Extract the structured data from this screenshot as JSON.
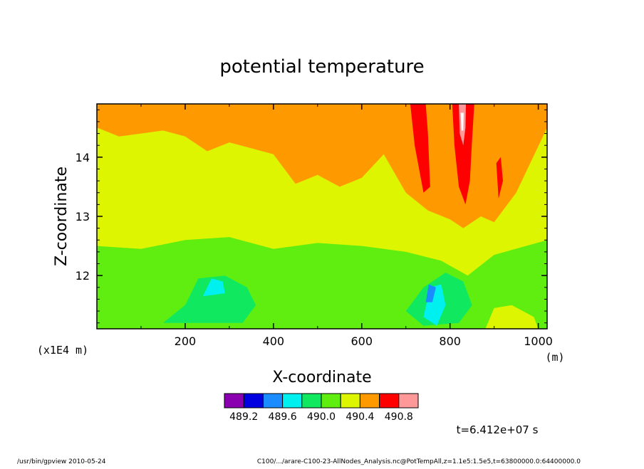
{
  "chart_data": {
    "type": "heatmap",
    "title": "potential temperature",
    "xlabel": "X-coordinate",
    "ylabel": "Z-coordinate",
    "x_unit": "(m)",
    "y_unit": "(x1E4 m)",
    "xlim": [
      0,
      1020
    ],
    "ylim": [
      11.1,
      14.9
    ],
    "x_ticks": [
      200,
      400,
      600,
      800,
      1000
    ],
    "y_ticks": [
      12,
      13,
      14
    ],
    "colorbar": {
      "colors": [
        "#8a00b0",
        "#0000e0",
        "#1a8cff",
        "#00f0f0",
        "#10e860",
        "#60ee10",
        "#ddf500",
        "#ff9900",
        "#ff0000",
        "#ff9999"
      ],
      "labels": [
        "489.2",
        "489.6",
        "490.0",
        "490.4",
        "490.8"
      ]
    },
    "layers": [
      {
        "color": "#60ee10",
        "level": "490.0-490.2",
        "region": "lower",
        "top": [
          [
            0,
            12.5
          ],
          [
            100,
            12.45
          ],
          [
            200,
            12.6
          ],
          [
            300,
            12.65
          ],
          [
            400,
            12.45
          ],
          [
            500,
            12.55
          ],
          [
            600,
            12.5
          ],
          [
            700,
            12.4
          ],
          [
            780,
            12.25
          ],
          [
            840,
            12.0
          ],
          [
            900,
            12.35
          ],
          [
            1020,
            12.6
          ]
        ]
      },
      {
        "color": "#ddf500",
        "level": "490.2-490.4",
        "region": "upper",
        "bottom": [
          [
            0,
            14.5
          ],
          [
            50,
            14.35
          ],
          [
            100,
            14.4
          ],
          [
            150,
            14.45
          ],
          [
            200,
            14.35
          ],
          [
            250,
            14.1
          ],
          [
            300,
            14.25
          ],
          [
            350,
            14.15
          ],
          [
            400,
            14.05
          ],
          [
            450,
            13.55
          ],
          [
            500,
            13.7
          ],
          [
            550,
            13.5
          ],
          [
            600,
            13.65
          ],
          [
            650,
            14.05
          ],
          [
            700,
            13.4
          ],
          [
            750,
            13.1
          ],
          [
            800,
            12.95
          ],
          [
            830,
            12.8
          ],
          [
            870,
            13.0
          ],
          [
            900,
            12.9
          ],
          [
            950,
            13.4
          ],
          [
            1020,
            14.5
          ]
        ]
      },
      {
        "color": "#10e860",
        "level": "489.8-490.0",
        "region": "patch",
        "outline": [
          [
            150,
            11.2
          ],
          [
            200,
            11.5
          ],
          [
            230,
            11.95
          ],
          [
            290,
            12.0
          ],
          [
            340,
            11.8
          ],
          [
            360,
            11.5
          ],
          [
            330,
            11.2
          ]
        ]
      },
      {
        "color": "#10e860",
        "level": "489.8-490.0",
        "region": "patch",
        "outline": [
          [
            700,
            11.4
          ],
          [
            740,
            11.8
          ],
          [
            790,
            12.05
          ],
          [
            830,
            11.9
          ],
          [
            850,
            11.5
          ],
          [
            820,
            11.2
          ],
          [
            740,
            11.15
          ]
        ]
      },
      {
        "color": "#00f0f0",
        "level": "489.6-489.8",
        "region": "patch",
        "outline": [
          [
            240,
            11.65
          ],
          [
            260,
            11.95
          ],
          [
            285,
            11.9
          ],
          [
            290,
            11.7
          ]
        ]
      },
      {
        "color": "#00f0f0",
        "level": "489.6-489.8",
        "region": "patch",
        "outline": [
          [
            740,
            11.3
          ],
          [
            755,
            11.8
          ],
          [
            780,
            11.85
          ],
          [
            790,
            11.5
          ],
          [
            770,
            11.15
          ]
        ]
      },
      {
        "color": "#1a8cff",
        "level": "489.4-489.6",
        "region": "patch",
        "outline": [
          [
            745,
            11.55
          ],
          [
            752,
            11.85
          ],
          [
            768,
            11.8
          ],
          [
            760,
            11.55
          ]
        ]
      },
      {
        "color": "#ddf500",
        "level": "490.2-490.4",
        "region": "patch",
        "outline": [
          [
            880,
            11.1
          ],
          [
            900,
            11.45
          ],
          [
            940,
            11.5
          ],
          [
            990,
            11.3
          ],
          [
            1000,
            11.1
          ]
        ]
      },
      {
        "color": "#ff0000",
        "level": "490.6-490.8",
        "region": "patch",
        "outline": [
          [
            710,
            14.9
          ],
          [
            720,
            14.2
          ],
          [
            740,
            13.4
          ],
          [
            755,
            13.5
          ],
          [
            750,
            14.4
          ],
          [
            745,
            14.9
          ]
        ]
      },
      {
        "color": "#ff0000",
        "level": "490.6-490.8",
        "region": "patch",
        "outline": [
          [
            805,
            14.9
          ],
          [
            810,
            14.2
          ],
          [
            820,
            13.5
          ],
          [
            835,
            13.2
          ],
          [
            845,
            13.6
          ],
          [
            850,
            14.3
          ],
          [
            855,
            14.9
          ]
        ]
      },
      {
        "color": "#ff0000",
        "level": "490.6-490.8",
        "region": "patch",
        "outline": [
          [
            905,
            13.9
          ],
          [
            910,
            13.3
          ],
          [
            920,
            13.6
          ],
          [
            915,
            14.0
          ]
        ]
      },
      {
        "color": "#ff9999",
        "level": "490.8-491.0",
        "region": "patch",
        "outline": [
          [
            820,
            14.9
          ],
          [
            822,
            14.4
          ],
          [
            830,
            14.2
          ],
          [
            835,
            14.5
          ],
          [
            836,
            14.9
          ]
        ]
      },
      {
        "color": "#ffffff",
        "level": ">491.0",
        "region": "patch",
        "outline": [
          [
            824,
            14.75
          ],
          [
            826,
            14.45
          ],
          [
            830,
            14.45
          ],
          [
            831,
            14.75
          ]
        ]
      }
    ],
    "time_label": "t=6.412e+07 s",
    "footer_left": "/usr/bin/gpview   2010-05-24",
    "footer_right": "C100/.../arare-C100-23-AllNodes_Analysis.nc@PotTempAll,z=1.1e5:1.5e5,t=63800000.0:64400000.0"
  }
}
